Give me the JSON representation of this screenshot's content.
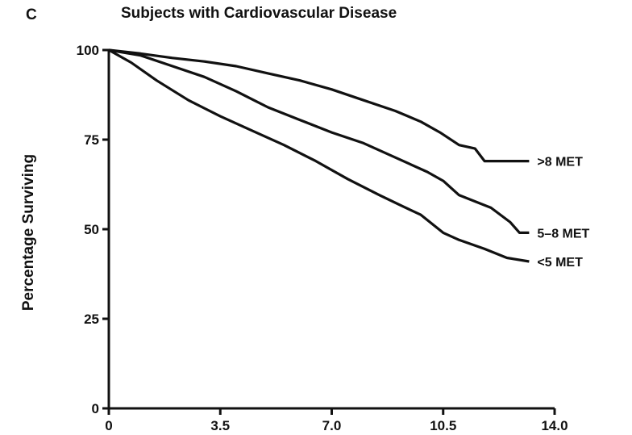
{
  "panel_label": "C",
  "chart_data": {
    "type": "line",
    "title": "Subjects with Cardiovascular Disease",
    "xlabel": "",
    "ylabel": "Percentage Surviving",
    "xlim": [
      0,
      14
    ],
    "ylim": [
      0,
      100
    ],
    "x_ticks": [
      "0",
      "3.5",
      "7.0",
      "10.5",
      "14.0"
    ],
    "y_ticks": [
      "0",
      "25",
      "50",
      "75",
      "100"
    ],
    "grid": false,
    "legend": "inline labels at line ends",
    "series": [
      {
        "name": ">8 MET",
        "points": [
          [
            0,
            100
          ],
          [
            1,
            99
          ],
          [
            2,
            97.8
          ],
          [
            3,
            96.8
          ],
          [
            4,
            95.5
          ],
          [
            5,
            93.5
          ],
          [
            6,
            91.5
          ],
          [
            7,
            89
          ],
          [
            8,
            86
          ],
          [
            9,
            83
          ],
          [
            9.8,
            80
          ],
          [
            10.4,
            77
          ],
          [
            11.0,
            73.5
          ],
          [
            11.5,
            72.5
          ],
          [
            11.8,
            69
          ],
          [
            13.2,
            69
          ]
        ]
      },
      {
        "name": "5–8 MET",
        "points": [
          [
            0,
            100
          ],
          [
            1,
            98.5
          ],
          [
            2,
            95.5
          ],
          [
            3,
            92.5
          ],
          [
            4,
            88.5
          ],
          [
            5,
            84
          ],
          [
            6,
            80.5
          ],
          [
            7,
            77
          ],
          [
            8,
            74
          ],
          [
            9,
            70
          ],
          [
            10,
            66
          ],
          [
            10.5,
            63.5
          ],
          [
            11,
            59.5
          ],
          [
            12,
            56
          ],
          [
            12.6,
            52
          ],
          [
            12.9,
            49
          ],
          [
            13.2,
            49
          ]
        ]
      },
      {
        "name": "<5 MET",
        "points": [
          [
            0,
            100
          ],
          [
            0.7,
            96.5
          ],
          [
            1.5,
            91.5
          ],
          [
            2.5,
            86
          ],
          [
            3.5,
            81.5
          ],
          [
            4.5,
            77.5
          ],
          [
            5.5,
            73.5
          ],
          [
            6.5,
            69
          ],
          [
            7.5,
            64
          ],
          [
            8.5,
            59.5
          ],
          [
            9.2,
            56.5
          ],
          [
            9.8,
            54
          ],
          [
            10.5,
            49
          ],
          [
            11,
            47
          ],
          [
            11.8,
            44.5
          ],
          [
            12.5,
            42
          ],
          [
            13.2,
            41
          ]
        ]
      }
    ]
  }
}
